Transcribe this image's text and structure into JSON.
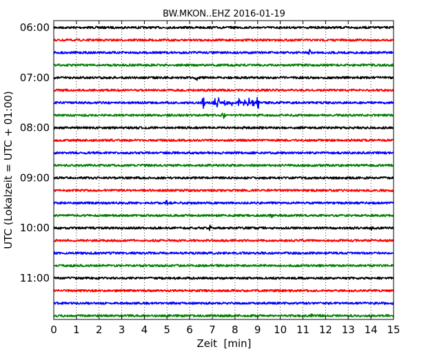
{
  "chart_data": {
    "type": "line",
    "title": "BW.MKON..EHZ 2016-01-19",
    "xlabel": "Zeit  [min]",
    "ylabel": "UTC (Lokalzeit = UTC + 01:00)",
    "xlim": [
      0,
      15
    ],
    "x_ticks": [
      "0",
      "1",
      "2",
      "3",
      "4",
      "5",
      "6",
      "7",
      "8",
      "9",
      "10",
      "11",
      "12",
      "13",
      "14",
      "15"
    ],
    "y_ticks": [
      "06:00",
      "07:00",
      "08:00",
      "09:00",
      "10:00",
      "11:00"
    ],
    "grid": true,
    "colors": [
      "#000000",
      "#ff0000",
      "#0000ff",
      "#007f00"
    ],
    "traces": [
      {
        "start": "06:00",
        "color": "#000000"
      },
      {
        "start": "06:15",
        "color": "#ff0000"
      },
      {
        "start": "06:30",
        "color": "#0000ff",
        "events": [
          {
            "t": 11.3,
            "amp": 0.3
          }
        ]
      },
      {
        "start": "06:45",
        "color": "#007f00"
      },
      {
        "start": "07:00",
        "color": "#000000",
        "events": [
          {
            "t": 6.3,
            "amp": 0.25
          }
        ]
      },
      {
        "start": "07:15",
        "color": "#ff0000"
      },
      {
        "start": "07:30",
        "color": "#0000ff",
        "events": [
          {
            "t": 6.6,
            "amp": 0.8
          },
          {
            "t": 7.1,
            "amp": 0.5
          },
          {
            "t": 7.25,
            "amp": 1.0
          },
          {
            "t": 7.6,
            "amp": 0.6
          },
          {
            "t": 7.9,
            "amp": 0.4
          },
          {
            "t": 8.2,
            "amp": 0.45
          },
          {
            "t": 8.4,
            "amp": 0.4
          },
          {
            "t": 8.6,
            "amp": 0.5
          },
          {
            "t": 8.8,
            "amp": 0.45
          },
          {
            "t": 9.0,
            "amp": 1.0
          }
        ]
      },
      {
        "start": "07:45",
        "color": "#007f00",
        "events": [
          {
            "t": 7.5,
            "amp": 0.35
          }
        ]
      },
      {
        "start": "08:00",
        "color": "#000000"
      },
      {
        "start": "08:15",
        "color": "#ff0000"
      },
      {
        "start": "08:30",
        "color": "#0000ff"
      },
      {
        "start": "08:45",
        "color": "#007f00"
      },
      {
        "start": "09:00",
        "color": "#000000"
      },
      {
        "start": "09:15",
        "color": "#ff0000"
      },
      {
        "start": "09:30",
        "color": "#0000ff",
        "events": [
          {
            "t": 5.0,
            "amp": 0.3
          }
        ]
      },
      {
        "start": "09:45",
        "color": "#007f00",
        "events": [
          {
            "t": 9.6,
            "amp": 0.3
          }
        ]
      },
      {
        "start": "10:00",
        "color": "#000000",
        "events": [
          {
            "t": 6.9,
            "amp": 0.25
          },
          {
            "t": 14.0,
            "amp": 0.25
          }
        ]
      },
      {
        "start": "10:15",
        "color": "#ff0000"
      },
      {
        "start": "10:30",
        "color": "#0000ff"
      },
      {
        "start": "10:45",
        "color": "#007f00"
      },
      {
        "start": "11:00",
        "color": "#000000"
      },
      {
        "start": "11:15",
        "color": "#ff0000"
      },
      {
        "start": "11:30",
        "color": "#0000ff"
      },
      {
        "start": "11:45",
        "color": "#007f00",
        "events": [
          {
            "t": 11.4,
            "amp": 0.25
          }
        ]
      }
    ]
  }
}
